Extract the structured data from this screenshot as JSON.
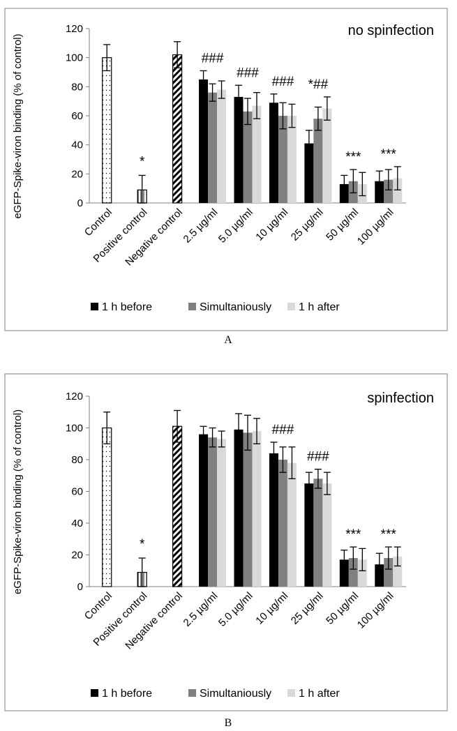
{
  "chart_data": [
    {
      "type": "bar",
      "panel_label": "A",
      "corner_text": "no spinfection",
      "ylabel": "eGFP-Spike-viron binding (% of control)",
      "ylim": [
        0,
        120
      ],
      "yticks": [
        0,
        20,
        40,
        60,
        80,
        100,
        120
      ],
      "categories": [
        "Control",
        "Positive control",
        "Negative control",
        "2.5 µg/ml",
        "5.0 µg/ml",
        "10 µg/ml",
        "25 µg/ml",
        "50 µg/ml",
        "100 µg/ml"
      ],
      "controls": [
        {
          "category": "Control",
          "value": 100,
          "error": 9,
          "pattern": "dots",
          "annotation": ""
        },
        {
          "category": "Positive control",
          "value": 9,
          "error": 10,
          "pattern": "vlines",
          "annotation": "*"
        },
        {
          "category": "Negative control",
          "value": 102,
          "error": 9,
          "pattern": "diag",
          "annotation": ""
        }
      ],
      "series": [
        {
          "name": "1 h before",
          "color": "#000000",
          "values": [
            null,
            null,
            null,
            85,
            73,
            69,
            41,
            13,
            15
          ],
          "errors": [
            null,
            null,
            null,
            6,
            8,
            6,
            9,
            6,
            7
          ]
        },
        {
          "name": "Simultaniously",
          "color": "#808080",
          "values": [
            null,
            null,
            null,
            76,
            63,
            60,
            58,
            15,
            16
          ],
          "errors": [
            null,
            null,
            null,
            6,
            9,
            9,
            8,
            8,
            7
          ]
        },
        {
          "name": "1 h after",
          "color": "#d9d9d9",
          "values": [
            null,
            null,
            null,
            78,
            67,
            60,
            65,
            13,
            17
          ],
          "errors": [
            null,
            null,
            null,
            6,
            9,
            8,
            8,
            8,
            8
          ]
        }
      ],
      "annotations": [
        "",
        "",
        "",
        "###",
        "###",
        "###",
        "*##",
        "***",
        "***"
      ],
      "legend_position": "bottom"
    },
    {
      "type": "bar",
      "panel_label": "B",
      "corner_text": "spinfection",
      "ylabel": "eGFP-Spike-viron binding (% of control)",
      "ylim": [
        0,
        120
      ],
      "yticks": [
        0,
        20,
        40,
        60,
        80,
        100,
        120
      ],
      "categories": [
        "Control",
        "Positive control",
        "Negative control",
        "2.5 µg/ml",
        "5.0 µg/ml",
        "10 µg/ml",
        "25 µg/ml",
        "50 µg/ml",
        "100 µg/ml"
      ],
      "controls": [
        {
          "category": "Control",
          "value": 100,
          "error": 10,
          "pattern": "dots",
          "annotation": ""
        },
        {
          "category": "Positive control",
          "value": 9,
          "error": 9,
          "pattern": "vlines",
          "annotation": "*"
        },
        {
          "category": "Negative control",
          "value": 101,
          "error": 10,
          "pattern": "diag",
          "annotation": ""
        }
      ],
      "series": [
        {
          "name": "1 h before",
          "color": "#000000",
          "values": [
            null,
            null,
            null,
            96,
            99,
            84,
            65,
            17,
            14
          ],
          "errors": [
            null,
            null,
            null,
            5,
            10,
            7,
            7,
            6,
            7
          ]
        },
        {
          "name": "Simultaniously",
          "color": "#808080",
          "values": [
            null,
            null,
            null,
            94,
            97,
            80,
            68,
            18,
            18
          ],
          "errors": [
            null,
            null,
            null,
            6,
            11,
            8,
            6,
            7,
            7
          ]
        },
        {
          "name": "1 h after",
          "color": "#d9d9d9",
          "values": [
            null,
            null,
            null,
            93,
            98,
            78,
            65,
            17,
            19
          ],
          "errors": [
            null,
            null,
            null,
            5,
            8,
            10,
            7,
            7,
            6
          ]
        }
      ],
      "annotations": [
        "",
        "",
        "",
        "",
        "",
        "###",
        "###",
        "***",
        "***"
      ],
      "legend_position": "bottom"
    }
  ]
}
